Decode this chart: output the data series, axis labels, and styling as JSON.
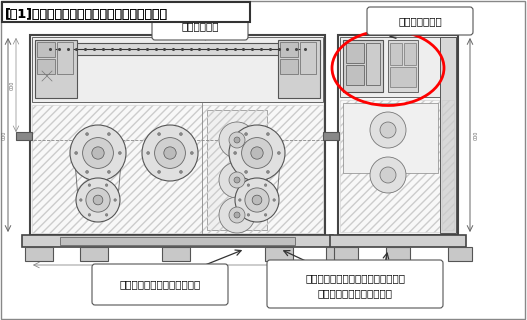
{
  "title": "『図1』測中走行耗久試験機の正面図と右側面図",
  "title_plain": "[図1]測中走行耗久試験機の正面図と右側面図",
  "annotation_motor": "モータの位置",
  "annotation_drive": "駆動機構の構造",
  "annotation_plate": "低コストな補強プレート構造",
  "annotation_base_line1": "ベースプレートを広く設計し重心の",
  "annotation_base_line2": "バランスを良くしている。",
  "bg_color": "#ffffff",
  "frame_color": "#888888",
  "draw_color": "#555555",
  "light_color": "#dddddd",
  "hatch_color": "#bbbbbb"
}
